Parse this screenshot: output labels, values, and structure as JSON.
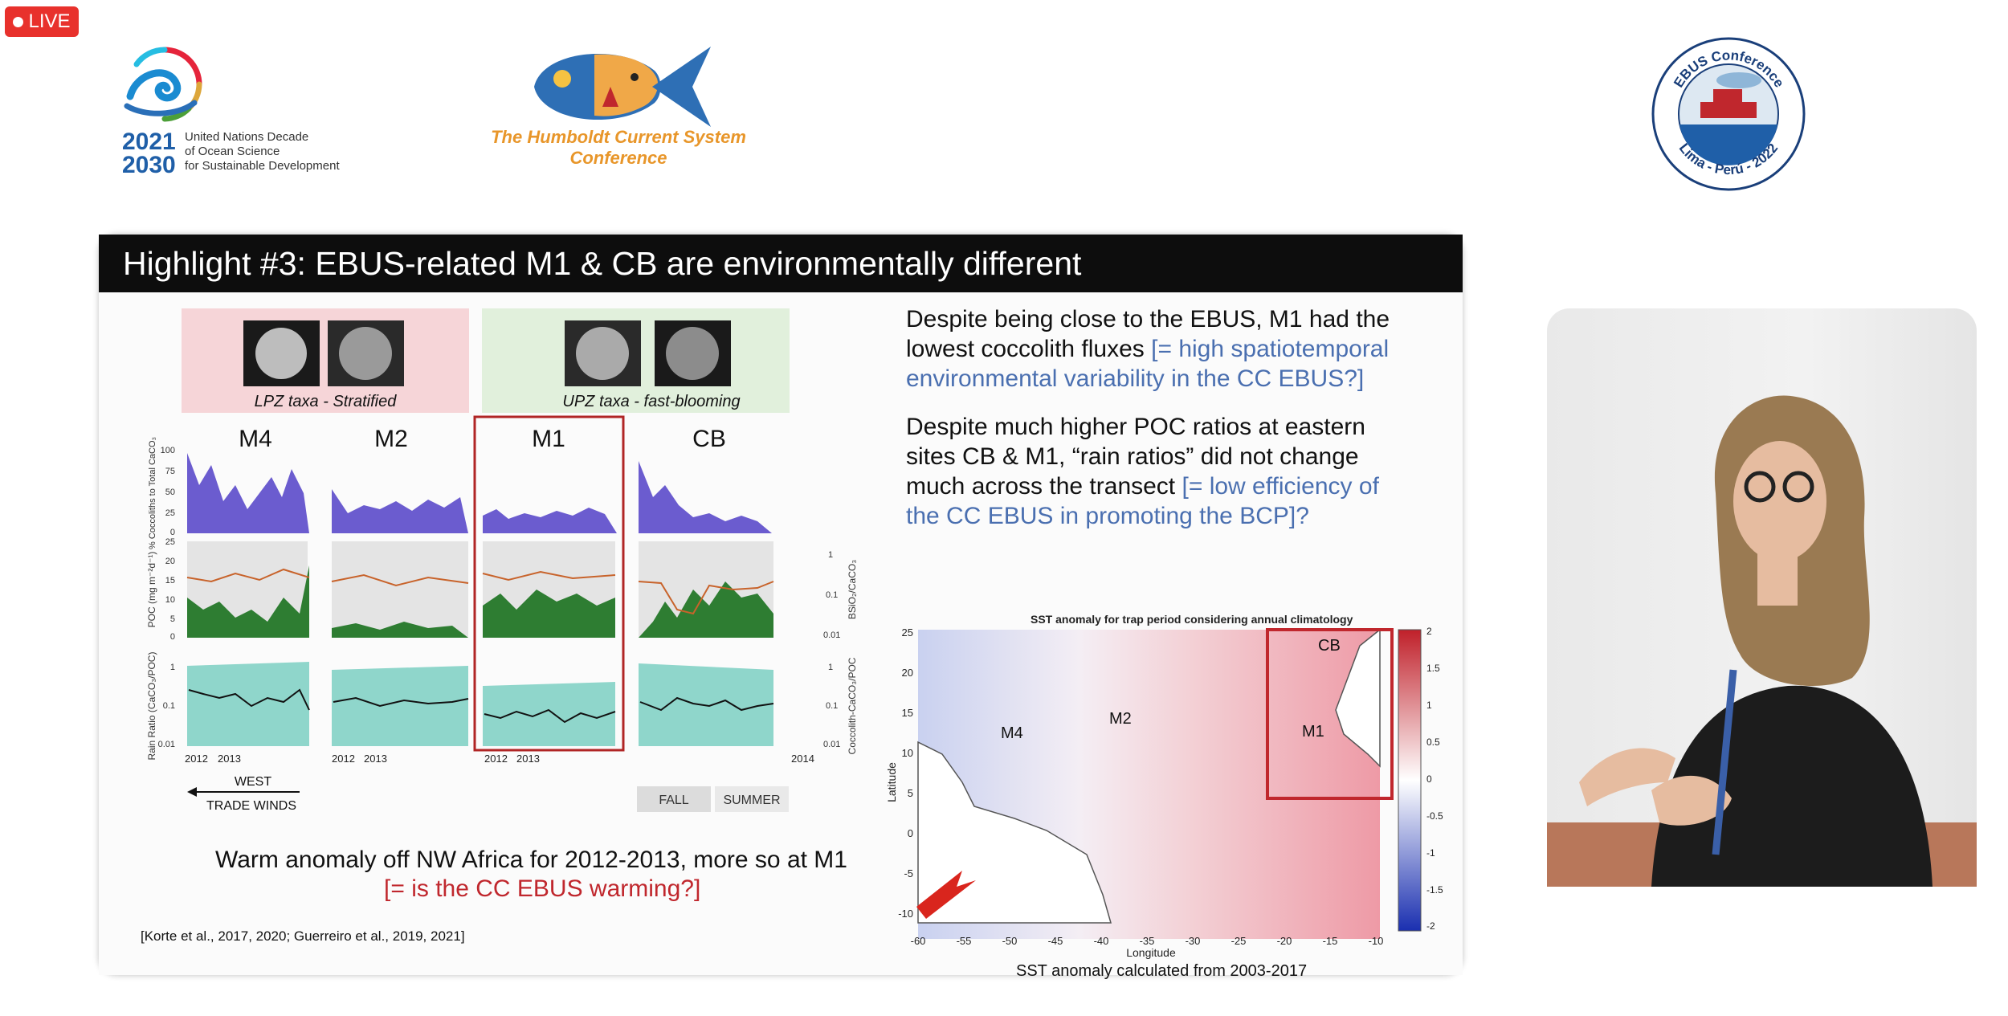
{
  "live_badge": {
    "label": "LIVE"
  },
  "logos": {
    "un_decade": {
      "years_top": "2021",
      "years_bottom": "2030",
      "line1": "United Nations Decade",
      "line2": "of Ocean Science",
      "line3": "for Sustainable Development"
    },
    "humboldt": {
      "line1": "The Humboldt Current System",
      "line2": "Conference"
    },
    "ebus_seal": {
      "top_text": "EBUS Conference",
      "bottom_text": "Lima - Perú - 2022"
    }
  },
  "slide": {
    "title": "Highlight #3: EBUS-related M1 & CB are environmentally different",
    "paragraph1": {
      "text": "Despite being close to the EBUS, M1 had the lowest coccolith fluxes",
      "highlight": "[= high spatiotemporal environmental variability in the CC EBUS?]"
    },
    "paragraph2": {
      "text": "Despite much higher POC ratios at eastern sites CB & M1, “rain ratios” did not change much across the transect",
      "highlight": "[= low efficiency of the CC EBUS in promoting the BCP]?"
    },
    "warm_line1": "Warm anomaly off NW Africa for 2012-2013, more so at M1",
    "warm_line2": "[= is the CC EBUS warming?]",
    "citation": "[Korte et al., 2017, 2020; Guerreiro et al., 2019, 2021]",
    "taxa": {
      "lpz": "LPZ taxa - Stratified",
      "upz": "UPZ taxa - fast-blooming"
    },
    "panel_labels": [
      "M4",
      "M2",
      "M1",
      "CB"
    ],
    "ylabels": {
      "row1": "% Coccoliths to Total CaCO₃",
      "row2": "POC (mg m⁻²d⁻¹)",
      "row3": "Rain Ratio (CaCO₃/POC)",
      "right2": "BSiO₂/CaCO₃",
      "right3": "Coccolith-CaCO₃/POC"
    },
    "row1_ticks": [
      "100",
      "75",
      "50",
      "25",
      "0"
    ],
    "row2_ticks": [
      "25",
      "20",
      "15",
      "10",
      "5",
      "0"
    ],
    "row3_ticks": [
      "1",
      "0.1",
      "0.01"
    ],
    "right2_ticks": [
      "1",
      "0.1",
      "0.01"
    ],
    "right3_ticks": [
      "1",
      "0.1",
      "0.01"
    ],
    "year_labels": [
      "2012",
      "2013",
      "2014"
    ],
    "west": "WEST",
    "trade_winds": "TRADE WINDS",
    "season_fall": "FALL",
    "season_summer": "SUMMER",
    "map": {
      "title": "SST anomaly for trap period considering annual climatology",
      "xlabel": "Longitude",
      "ylabel": "Latitude",
      "xticks": [
        "-60",
        "-55",
        "-50",
        "-45",
        "-40",
        "-35",
        "-30",
        "-25",
        "-20",
        "-15",
        "-10"
      ],
      "yticks": [
        "25",
        "20",
        "15",
        "10",
        "5",
        "0",
        "-5",
        "-10"
      ],
      "colorbar_ticks": [
        "2",
        "1.5",
        "1",
        "0.5",
        "0",
        "-0.5",
        "-1",
        "-1.5",
        "-2"
      ],
      "sites": [
        "M4",
        "M2",
        "M1",
        "CB"
      ],
      "caption": "SST anomaly calculated from  2003-2017"
    }
  },
  "colors": {
    "accent_blue": "#4a6fb0",
    "red": "#c0272d",
    "live": "#e8312c",
    "header": "#0d0d0d"
  }
}
